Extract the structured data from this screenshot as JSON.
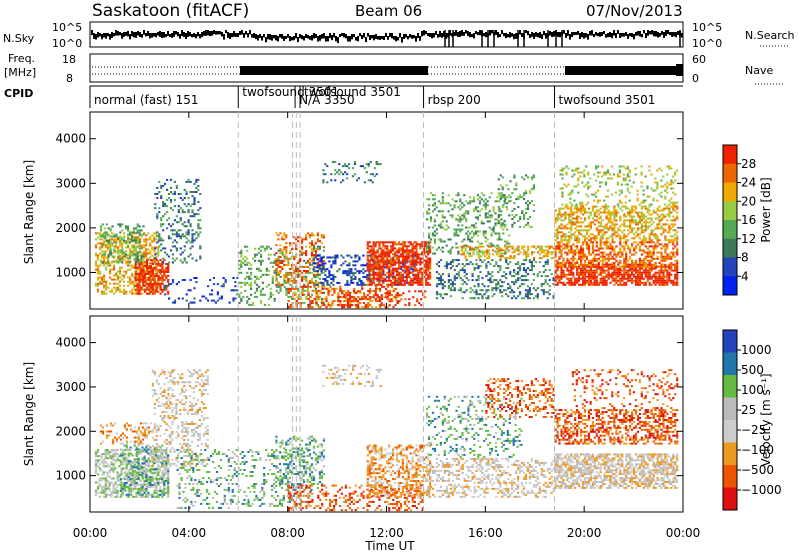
{
  "header": {
    "station": "Saskatoon (fitACF)",
    "beam": "Beam 06",
    "date": "07/Nov/2013"
  },
  "summary": {
    "nsky_label": "N.Sky",
    "nsky_ticks": [
      "10^5",
      "10^0"
    ],
    "nsearch_label": "N.Search",
    "nsearch_ticks": [
      "10^5",
      "10^0"
    ],
    "freq_label": "Freq.",
    "freq_unit": "[MHz]",
    "freq_ticks": [
      "18",
      "8"
    ],
    "nave_label": "Nave",
    "nave_ticks": [
      "60",
      "0"
    ],
    "cpid_label": "CPID"
  },
  "cpid_segments": [
    {
      "start": 0.0,
      "end": 6.0,
      "label": "normal (fast) 151"
    },
    {
      "start": 6.0,
      "end": 8.3,
      "label": "twofsound 3501"
    },
    {
      "start": 8.3,
      "end": 8.5,
      "label": "N/A 3350"
    },
    {
      "start": 8.5,
      "end": 13.5,
      "label": "twofsound 3501"
    },
    {
      "start": 13.5,
      "end": 18.8,
      "label": "rbsp 200"
    },
    {
      "start": 18.8,
      "end": 24.0,
      "label": "twofsound 3501"
    }
  ],
  "colors": {
    "power": [
      "#0022ee",
      "#2244bb",
      "#3a7a5a",
      "#55aa55",
      "#99cc44",
      "#eeaa00",
      "#ee6600",
      "#ee2200"
    ],
    "velocity": [
      "#dd1111",
      "#ee5500",
      "#ee9922",
      "#cccccc",
      "#bbbbbb",
      "#66bb44",
      "#2277aa",
      "#2244bb"
    ]
  },
  "chart_data": [
    {
      "type": "heatmap",
      "panel": "power",
      "xlabel": "Time UT",
      "ylabel": "Slant Range [km]",
      "xlim": [
        0,
        24
      ],
      "ylim": [
        180,
        4600
      ],
      "xticks": [
        "00:00",
        "04:00",
        "08:00",
        "12:00",
        "16:00",
        "20:00",
        "00:00"
      ],
      "yticks": [
        "1000",
        "2000",
        "3000",
        "4000"
      ],
      "ytick_values": [
        1000,
        2000,
        3000,
        4000
      ],
      "colorbar_label": "Power [dB]",
      "colorbar_ticks": [
        "28",
        "24",
        "20",
        "16",
        "12",
        "8",
        "4"
      ],
      "blobs": [
        {
          "t0": 0.2,
          "t1": 2.8,
          "r0": 500,
          "r1": 1900,
          "tier": 5,
          "d": 0.5
        },
        {
          "t0": 1.8,
          "t1": 3.2,
          "r0": 500,
          "r1": 1300,
          "tier": 7,
          "d": 0.6
        },
        {
          "t0": 0.4,
          "t1": 2.2,
          "r0": 1200,
          "r1": 2100,
          "tier": 3,
          "d": 0.35
        },
        {
          "t0": 2.6,
          "t1": 4.5,
          "r0": 1200,
          "r1": 3100,
          "tier": 2,
          "d": 0.25
        },
        {
          "t0": 3.0,
          "t1": 6.0,
          "r0": 300,
          "r1": 900,
          "tier": 1,
          "d": 0.12
        },
        {
          "t0": 6.0,
          "t1": 9.5,
          "r0": 250,
          "r1": 1600,
          "tier": 3,
          "d": 0.25
        },
        {
          "t0": 7.5,
          "t1": 9.5,
          "r0": 700,
          "r1": 1900,
          "tier": 6,
          "d": 0.3
        },
        {
          "t0": 8.0,
          "t1": 12.5,
          "r0": 200,
          "r1": 700,
          "tier": 6,
          "d": 0.35
        },
        {
          "t0": 9.0,
          "t1": 13.2,
          "r0": 700,
          "r1": 1400,
          "tier": 1,
          "d": 0.35
        },
        {
          "t0": 10.0,
          "t1": 13.6,
          "r0": 200,
          "r1": 600,
          "tier": 7,
          "d": 0.3
        },
        {
          "t0": 11.2,
          "t1": 13.8,
          "r0": 700,
          "r1": 1700,
          "tier": 7,
          "d": 0.7
        },
        {
          "t0": 9.4,
          "t1": 11.8,
          "r0": 3000,
          "r1": 3500,
          "tier": 2,
          "d": 0.2
        },
        {
          "t0": 13.6,
          "t1": 17.0,
          "r0": 1400,
          "r1": 2800,
          "tier": 3,
          "d": 0.25
        },
        {
          "t0": 14.0,
          "t1": 18.8,
          "r0": 400,
          "r1": 1300,
          "tier": 2,
          "d": 0.3
        },
        {
          "t0": 15.0,
          "t1": 18.8,
          "r0": 1300,
          "r1": 1600,
          "tier": 5,
          "d": 0.4
        },
        {
          "t0": 16.5,
          "t1": 18.0,
          "r0": 2000,
          "r1": 3200,
          "tier": 3,
          "d": 0.2
        },
        {
          "t0": 18.8,
          "t1": 23.8,
          "r0": 700,
          "r1": 1200,
          "tier": 7,
          "d": 0.75
        },
        {
          "t0": 18.8,
          "t1": 23.8,
          "r0": 1100,
          "r1": 1700,
          "tier": 6,
          "d": 0.6
        },
        {
          "t0": 18.8,
          "t1": 23.8,
          "r0": 1700,
          "r1": 2500,
          "tier": 5,
          "d": 0.5
        },
        {
          "t0": 19.0,
          "t1": 23.8,
          "r0": 2500,
          "r1": 3400,
          "tier": 4,
          "d": 0.2
        }
      ]
    },
    {
      "type": "heatmap",
      "panel": "velocity",
      "xlabel": "Time UT",
      "ylabel": "Slant Range [km]",
      "xlim": [
        0,
        24
      ],
      "ylim": [
        180,
        4600
      ],
      "xticks": [
        "00:00",
        "04:00",
        "08:00",
        "12:00",
        "16:00",
        "20:00",
        "00:00"
      ],
      "yticks": [
        "1000",
        "2000",
        "3000",
        "4000"
      ],
      "ytick_values": [
        1000,
        2000,
        3000,
        4000
      ],
      "colorbar_label": "Velocity [m s⁻¹]",
      "colorbar_ticks": [
        "1000",
        "500",
        "100",
        "25",
        "−25",
        "−100",
        "−500",
        "−1000"
      ],
      "blobs": [
        {
          "t0": 0.2,
          "t1": 3.2,
          "r0": 500,
          "r1": 1600,
          "tier": 4,
          "d": 0.55
        },
        {
          "t0": 1.2,
          "t1": 3.2,
          "r0": 500,
          "r1": 1700,
          "tier": 5,
          "d": 0.45
        },
        {
          "t0": 0.4,
          "t1": 2.5,
          "r0": 1700,
          "r1": 2200,
          "tier": 2,
          "d": 0.35
        },
        {
          "t0": 2.5,
          "t1": 4.8,
          "r0": 1200,
          "r1": 3400,
          "tier": 3,
          "d": 0.3
        },
        {
          "t0": 3.5,
          "t1": 9.0,
          "r0": 250,
          "r1": 1600,
          "tier": 5,
          "d": 0.2
        },
        {
          "t0": 7.5,
          "t1": 9.5,
          "r0": 700,
          "r1": 1900,
          "tier": 5,
          "d": 0.3
        },
        {
          "t0": 8.0,
          "t1": 13.5,
          "r0": 200,
          "r1": 800,
          "tier": 1,
          "d": 0.3
        },
        {
          "t0": 9.4,
          "t1": 11.8,
          "r0": 3000,
          "r1": 3500,
          "tier": 3,
          "d": 0.2
        },
        {
          "t0": 11.2,
          "t1": 13.8,
          "r0": 500,
          "r1": 1700,
          "tier": 2,
          "d": 0.45
        },
        {
          "t0": 13.6,
          "t1": 17.5,
          "r0": 1400,
          "r1": 2800,
          "tier": 5,
          "d": 0.2
        },
        {
          "t0": 13.6,
          "t1": 18.8,
          "r0": 500,
          "r1": 1400,
          "tier": 3,
          "d": 0.35
        },
        {
          "t0": 16.0,
          "t1": 18.8,
          "r0": 2300,
          "r1": 3200,
          "tier": 1,
          "d": 0.3
        },
        {
          "t0": 18.8,
          "t1": 23.8,
          "r0": 700,
          "r1": 1500,
          "tier": 3,
          "d": 0.7
        },
        {
          "t0": 18.8,
          "t1": 23.8,
          "r0": 1700,
          "r1": 2500,
          "tier": 1,
          "d": 0.5
        },
        {
          "t0": 19.5,
          "t1": 23.8,
          "r0": 2500,
          "r1": 3400,
          "tier": 1,
          "d": 0.2
        }
      ]
    }
  ]
}
